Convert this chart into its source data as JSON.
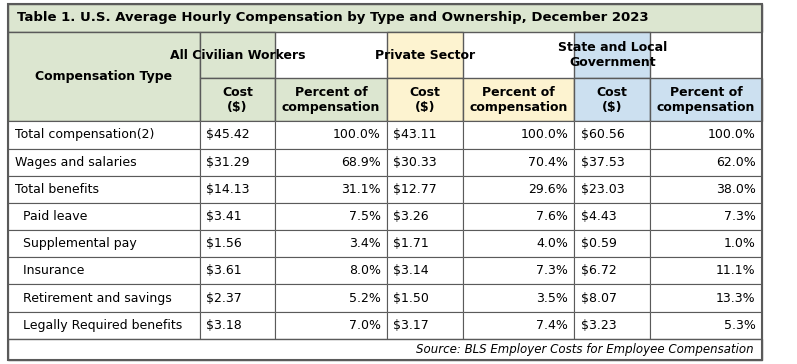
{
  "title": "Table 1. U.S. Average Hourly Compensation by Type and Ownership, December 2023",
  "source": "Source: BLS Employer Costs for Employee Compensation",
  "col_groups": [
    {
      "label": "All Civilian Workers",
      "bg": "#dce6d0",
      "cols": [
        0,
        1
      ]
    },
    {
      "label": "Private Sector",
      "bg": "#fdf3d0",
      "cols": [
        2,
        3
      ]
    },
    {
      "label": "State and Local\nGovernment",
      "bg": "#cce0f0",
      "cols": [
        4,
        5
      ]
    }
  ],
  "sub_headers": [
    "Cost\n($)",
    "Percent of\ncompensation",
    "Cost\n($)",
    "Percent of\ncompensation",
    "Cost\n($)",
    "Percent of\ncompensation"
  ],
  "sub_header_bg": [
    "#dce6d0",
    "#dce6d0",
    "#fdf3d0",
    "#fdf3d0",
    "#cce0f0",
    "#cce0f0"
  ],
  "rows": [
    {
      "label": "Total compensation(2)",
      "indent": false,
      "values": [
        "$45.42",
        "100.0%",
        "$43.11",
        "100.0%",
        "$60.56",
        "100.0%"
      ]
    },
    {
      "label": "Wages and salaries",
      "indent": false,
      "values": [
        "$31.29",
        "68.9%",
        "$30.33",
        "70.4%",
        "$37.53",
        "62.0%"
      ]
    },
    {
      "label": "Total benefits",
      "indent": false,
      "values": [
        "$14.13",
        "31.1%",
        "$12.77",
        "29.6%",
        "$23.03",
        "38.0%"
      ]
    },
    {
      "label": "  Paid leave",
      "indent": true,
      "values": [
        "$3.41",
        "7.5%",
        "$3.26",
        "7.6%",
        "$4.43",
        "7.3%"
      ]
    },
    {
      "label": "  Supplemental pay",
      "indent": true,
      "values": [
        "$1.56",
        "3.4%",
        "$1.71",
        "4.0%",
        "$0.59",
        "1.0%"
      ]
    },
    {
      "label": "  Insurance",
      "indent": true,
      "values": [
        "$3.61",
        "8.0%",
        "$3.14",
        "7.3%",
        "$6.72",
        "11.1%"
      ]
    },
    {
      "label": "  Retirement and savings",
      "indent": true,
      "values": [
        "$2.37",
        "5.2%",
        "$1.50",
        "3.5%",
        "$8.07",
        "13.3%"
      ]
    },
    {
      "label": "  Legally Required benefits",
      "indent": true,
      "values": [
        "$3.18",
        "7.0%",
        "$3.17",
        "7.4%",
        "$3.23",
        "5.3%"
      ]
    }
  ],
  "title_bg": "#dce6d0",
  "header_row_bg": "#ffffff",
  "data_row_bg": "#ffffff",
  "border_color": "#5a5a5a",
  "title_font_size": 9.5,
  "header_font_size": 9,
  "data_font_size": 9,
  "comp_type_bg": "#dce6d0"
}
